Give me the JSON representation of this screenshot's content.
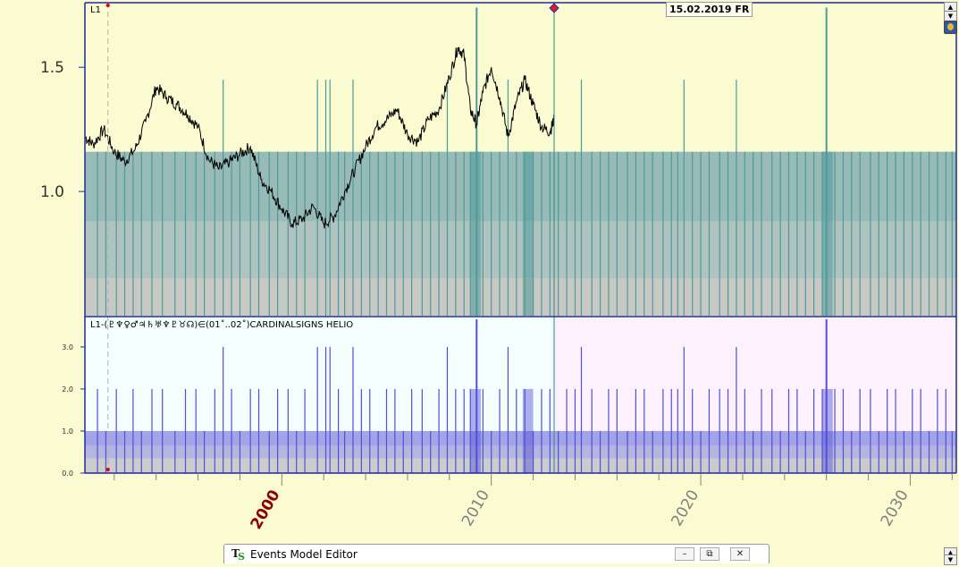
{
  "header": {
    "date_label": "15.02.2019 FR"
  },
  "taskbar": {
    "icon": "ts-app-icon",
    "title": "Events Model Editor",
    "minimize_glyph": "–",
    "restore_glyph": "⧉",
    "close_glyph": "✕"
  },
  "colors": {
    "background_upper": "#fbfbd2",
    "lower_past": "#f4feff",
    "lower_future": "#fcf1fc",
    "price_line": "#000000",
    "event_upper": "#4f9a9a",
    "event_lower": "#5050d8",
    "band_grey": "#c0c0c0",
    "year_2000": "#8b0000",
    "year_other": "#808080",
    "cursor_line": "#2a8a8a"
  },
  "chart_data": [
    {
      "type": "line",
      "panel": "upper",
      "series_label": "L1",
      "x_unit": "year",
      "xlim": [
        1990.6,
        2032.2
      ],
      "ylim": [
        0.5,
        1.76
      ],
      "ytick_labels": [
        "1.0",
        "1.5"
      ],
      "yticks": [
        1.0,
        1.5
      ],
      "price_series": {
        "x": [
          1990.6,
          1991.0,
          1991.5,
          1992.0,
          1992.5,
          1993.0,
          1993.5,
          1994.0,
          1994.5,
          1995.0,
          1995.5,
          1996.0,
          1996.5,
          1997.0,
          1997.5,
          1998.0,
          1998.5,
          1999.0,
          1999.5,
          2000.0,
          2000.5,
          2001.0,
          2001.5,
          2002.0,
          2002.5,
          2003.0,
          2003.5,
          2004.0,
          2004.5,
          2005.0,
          2005.5,
          2006.0,
          2006.5,
          2007.0,
          2007.5,
          2008.0,
          2008.4,
          2008.7,
          2009.0,
          2009.3,
          2009.6,
          2010.0,
          2010.4,
          2010.8,
          2011.2,
          2011.6,
          2012.0,
          2012.4,
          2012.8,
          2013.0
        ],
        "y": [
          1.22,
          1.19,
          1.25,
          1.16,
          1.12,
          1.17,
          1.28,
          1.42,
          1.38,
          1.35,
          1.31,
          1.26,
          1.13,
          1.09,
          1.12,
          1.15,
          1.18,
          1.05,
          1.0,
          0.93,
          0.87,
          0.89,
          0.94,
          0.87,
          0.9,
          1.0,
          1.09,
          1.18,
          1.26,
          1.29,
          1.33,
          1.23,
          1.2,
          1.29,
          1.33,
          1.46,
          1.58,
          1.55,
          1.33,
          1.27,
          1.4,
          1.5,
          1.38,
          1.22,
          1.36,
          1.45,
          1.35,
          1.26,
          1.24,
          1.29
        ]
      },
      "bands": [
        {
          "from": 0.5,
          "to": 0.65
        },
        {
          "from": 0.65,
          "to": 0.88
        },
        {
          "from": 0.88,
          "to": 1.16
        }
      ],
      "spike_levels": [
        1.16,
        1.45,
        1.74
      ],
      "events": [
        [
          1991.2,
          1.16
        ],
        [
          1991.6,
          1.16
        ],
        [
          1992.1,
          1.16
        ],
        [
          1992.5,
          1.16
        ],
        [
          1992.9,
          1.16
        ],
        [
          1993.3,
          1.16
        ],
        [
          1993.8,
          1.16
        ],
        [
          1994.3,
          1.16
        ],
        [
          1994.9,
          1.16
        ],
        [
          1995.4,
          1.16
        ],
        [
          1995.9,
          1.16
        ],
        [
          1996.3,
          1.16
        ],
        [
          1996.8,
          1.16
        ],
        [
          1997.2,
          1.45
        ],
        [
          1997.6,
          1.16
        ],
        [
          1998.0,
          1.16
        ],
        [
          1998.5,
          1.16
        ],
        [
          1998.9,
          1.16
        ],
        [
          1999.4,
          1.16
        ],
        [
          1999.8,
          1.16
        ],
        [
          2000.3,
          1.16
        ],
        [
          2000.7,
          1.16
        ],
        [
          2001.1,
          1.16
        ],
        [
          2001.7,
          1.45
        ],
        [
          2002.1,
          1.45
        ],
        [
          2002.3,
          1.45
        ],
        [
          2002.7,
          1.16
        ],
        [
          2003.0,
          1.16
        ],
        [
          2003.4,
          1.45
        ],
        [
          2003.8,
          1.16
        ],
        [
          2004.2,
          1.16
        ],
        [
          2004.6,
          1.16
        ],
        [
          2005.0,
          1.16
        ],
        [
          2005.4,
          1.16
        ],
        [
          2005.8,
          1.16
        ],
        [
          2006.2,
          1.16
        ],
        [
          2006.7,
          1.16
        ],
        [
          2007.1,
          1.16
        ],
        [
          2007.5,
          1.16
        ],
        [
          2007.9,
          1.45
        ],
        [
          2008.3,
          1.16
        ],
        [
          2008.7,
          1.16
        ],
        [
          2009.0,
          1.16
        ],
        [
          2009.3,
          1.74
        ],
        [
          2009.6,
          1.16
        ],
        [
          2010.0,
          1.16
        ],
        [
          2010.4,
          1.16
        ],
        [
          2010.8,
          1.45
        ],
        [
          2011.2,
          1.16
        ],
        [
          2011.6,
          1.16
        ],
        [
          2012.0,
          1.16
        ],
        [
          2012.4,
          1.16
        ],
        [
          2012.8,
          1.16
        ],
        [
          2013.2,
          1.16
        ],
        [
          2013.6,
          1.16
        ],
        [
          2014.0,
          1.16
        ],
        [
          2014.3,
          1.45
        ],
        [
          2014.8,
          1.16
        ],
        [
          2015.2,
          1.16
        ],
        [
          2015.6,
          1.16
        ],
        [
          2016.0,
          1.16
        ],
        [
          2016.5,
          1.16
        ],
        [
          2016.9,
          1.16
        ],
        [
          2017.3,
          1.16
        ],
        [
          2017.7,
          1.16
        ],
        [
          2018.2,
          1.16
        ],
        [
          2018.6,
          1.16
        ],
        [
          2018.9,
          1.16
        ],
        [
          2019.2,
          1.45
        ],
        [
          2019.6,
          1.16
        ],
        [
          2020.0,
          1.16
        ],
        [
          2020.4,
          1.16
        ],
        [
          2020.9,
          1.16
        ],
        [
          2021.3,
          1.16
        ],
        [
          2021.7,
          1.45
        ],
        [
          2022.1,
          1.16
        ],
        [
          2022.5,
          1.16
        ],
        [
          2022.9,
          1.16
        ],
        [
          2023.4,
          1.16
        ],
        [
          2023.8,
          1.16
        ],
        [
          2024.2,
          1.16
        ],
        [
          2024.6,
          1.16
        ],
        [
          2025.0,
          1.16
        ],
        [
          2025.4,
          1.16
        ],
        [
          2025.8,
          1.16
        ],
        [
          2026.0,
          1.74
        ],
        [
          2026.4,
          1.16
        ],
        [
          2026.8,
          1.16
        ],
        [
          2027.2,
          1.16
        ],
        [
          2027.6,
          1.16
        ],
        [
          2028.1,
          1.16
        ],
        [
          2028.5,
          1.16
        ],
        [
          2028.9,
          1.16
        ],
        [
          2029.3,
          1.16
        ],
        [
          2029.7,
          1.16
        ],
        [
          2030.1,
          1.16
        ],
        [
          2030.5,
          1.16
        ],
        [
          2030.9,
          1.16
        ],
        [
          2031.3,
          1.16
        ],
        [
          2031.7,
          1.16
        ],
        [
          2032.0,
          1.16
        ]
      ],
      "dense_clusters": [
        [
          2009.0,
          2009.5
        ],
        [
          2011.5,
          2012.0
        ],
        [
          2025.8,
          2026.3
        ]
      ]
    },
    {
      "type": "bar",
      "panel": "lower",
      "title": "L1-(♇♆♀♂♃♄♅♆♇♉☊)∈(01˚..02˚)CARDINALSIGNS  HELIO",
      "x_unit": "year",
      "xlim": [
        1990.6,
        2032.2
      ],
      "ylim": [
        0.0,
        3.7
      ],
      "ytick_labels": [
        "0.0",
        "1.0",
        "2.0",
        "3.0"
      ],
      "yticks": [
        0.0,
        1.0,
        2.0,
        3.0
      ],
      "bands": [
        {
          "from": 0.0,
          "to": 0.35
        },
        {
          "from": 0.35,
          "to": 0.65
        },
        {
          "from": 0.65,
          "to": 1.0
        }
      ],
      "events": [
        [
          1991.2,
          2.0
        ],
        [
          1991.6,
          1.0
        ],
        [
          1992.1,
          2.0
        ],
        [
          1992.5,
          1.0
        ],
        [
          1992.9,
          2.0
        ],
        [
          1993.3,
          1.0
        ],
        [
          1993.8,
          2.0
        ],
        [
          1994.3,
          2.0
        ],
        [
          1994.9,
          1.0
        ],
        [
          1995.4,
          2.0
        ],
        [
          1995.9,
          2.0
        ],
        [
          1996.3,
          1.0
        ],
        [
          1996.8,
          2.0
        ],
        [
          1997.2,
          3.0
        ],
        [
          1997.6,
          2.0
        ],
        [
          1998.0,
          1.0
        ],
        [
          1998.5,
          2.0
        ],
        [
          1998.9,
          2.0
        ],
        [
          1999.4,
          1.0
        ],
        [
          1999.8,
          2.0
        ],
        [
          2000.3,
          2.0
        ],
        [
          2000.7,
          1.0
        ],
        [
          2001.1,
          2.0
        ],
        [
          2001.7,
          3.0
        ],
        [
          2002.1,
          3.0
        ],
        [
          2002.3,
          3.0
        ],
        [
          2002.7,
          2.0
        ],
        [
          2003.0,
          1.0
        ],
        [
          2003.4,
          3.0
        ],
        [
          2003.8,
          2.0
        ],
        [
          2004.2,
          2.0
        ],
        [
          2004.6,
          1.0
        ],
        [
          2005.0,
          2.0
        ],
        [
          2005.4,
          2.0
        ],
        [
          2005.8,
          1.0
        ],
        [
          2006.2,
          2.0
        ],
        [
          2006.7,
          2.0
        ],
        [
          2007.1,
          1.0
        ],
        [
          2007.5,
          2.0
        ],
        [
          2007.9,
          3.0
        ],
        [
          2008.3,
          2.0
        ],
        [
          2008.7,
          2.0
        ],
        [
          2009.0,
          2.0
        ],
        [
          2009.3,
          3.9
        ],
        [
          2009.6,
          2.0
        ],
        [
          2010.0,
          1.0
        ],
        [
          2010.4,
          2.0
        ],
        [
          2010.8,
          3.0
        ],
        [
          2011.2,
          2.0
        ],
        [
          2011.6,
          2.0
        ],
        [
          2012.0,
          1.0
        ],
        [
          2012.4,
          2.0
        ],
        [
          2012.8,
          2.0
        ],
        [
          2013.2,
          1.0
        ],
        [
          2013.6,
          2.0
        ],
        [
          2014.0,
          2.0
        ],
        [
          2014.3,
          3.0
        ],
        [
          2014.8,
          2.0
        ],
        [
          2015.2,
          1.0
        ],
        [
          2015.6,
          2.0
        ],
        [
          2016.0,
          2.0
        ],
        [
          2016.5,
          1.0
        ],
        [
          2016.9,
          2.0
        ],
        [
          2017.3,
          2.0
        ],
        [
          2017.7,
          1.0
        ],
        [
          2018.2,
          2.0
        ],
        [
          2018.6,
          2.0
        ],
        [
          2018.9,
          2.0
        ],
        [
          2019.2,
          3.0
        ],
        [
          2019.6,
          2.0
        ],
        [
          2020.0,
          1.0
        ],
        [
          2020.4,
          2.0
        ],
        [
          2020.9,
          2.0
        ],
        [
          2021.3,
          2.0
        ],
        [
          2021.7,
          3.0
        ],
        [
          2022.1,
          2.0
        ],
        [
          2022.5,
          1.0
        ],
        [
          2022.9,
          2.0
        ],
        [
          2023.4,
          2.0
        ],
        [
          2023.8,
          1.0
        ],
        [
          2024.2,
          2.0
        ],
        [
          2024.6,
          2.0
        ],
        [
          2025.0,
          1.0
        ],
        [
          2025.4,
          2.0
        ],
        [
          2025.8,
          2.0
        ],
        [
          2026.0,
          3.9
        ],
        [
          2026.4,
          2.0
        ],
        [
          2026.8,
          2.0
        ],
        [
          2027.2,
          1.0
        ],
        [
          2027.6,
          2.0
        ],
        [
          2028.1,
          2.0
        ],
        [
          2028.5,
          1.0
        ],
        [
          2028.9,
          2.0
        ],
        [
          2029.3,
          2.0
        ],
        [
          2029.7,
          1.0
        ],
        [
          2030.1,
          2.0
        ],
        [
          2030.5,
          2.0
        ],
        [
          2030.9,
          1.0
        ],
        [
          2031.3,
          2.0
        ],
        [
          2031.7,
          2.0
        ],
        [
          2032.0,
          1.0
        ]
      ],
      "dense_clusters": [
        [
          2009.0,
          2009.5
        ],
        [
          2011.5,
          2012.0
        ],
        [
          2025.8,
          2026.3
        ]
      ]
    }
  ],
  "xaxis": {
    "year_labels": [
      {
        "year": 2000,
        "label": "2000",
        "highlight": true
      },
      {
        "year": 2010,
        "label": "2010",
        "highlight": false
      },
      {
        "year": 2020,
        "label": "2020",
        "highlight": false
      },
      {
        "year": 2030,
        "label": "2030",
        "highlight": false
      }
    ],
    "minor_tick_years": [
      1992,
      1994,
      1996,
      1998,
      2000,
      2002,
      2004,
      2006,
      2008,
      2010,
      2012,
      2014,
      2016,
      2018,
      2020,
      2022,
      2024,
      2026,
      2028,
      2030,
      2032
    ]
  },
  "cursor": {
    "year": 2013.0,
    "ref_year": 1991.7
  }
}
